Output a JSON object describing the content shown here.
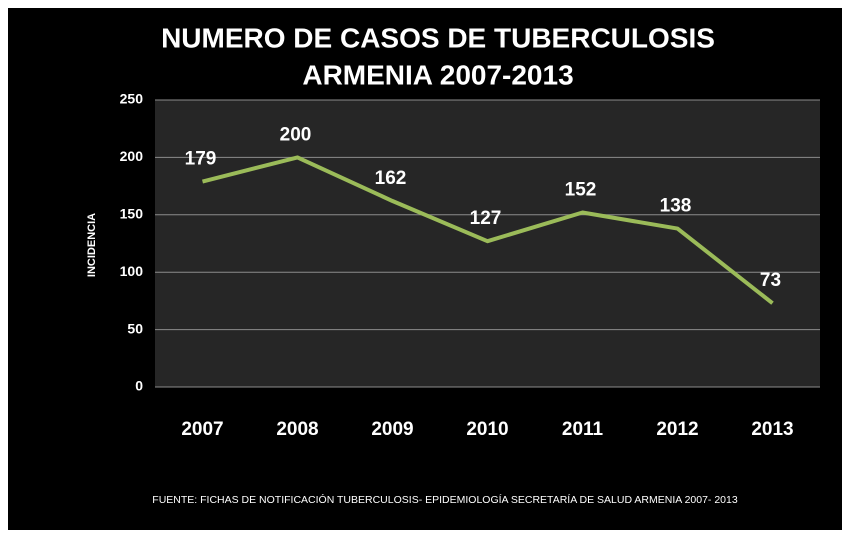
{
  "chart_data": {
    "type": "line",
    "title": [
      "NUMERO DE CASOS DE TUBERCULOSIS",
      "ARMENIA 2007-2013"
    ],
    "y_label": "INCIDENCIA",
    "source": "FUENTE: FICHAS DE NOTIFICACIÓN TUBERCULOSIS- EPIDEMIOLOGÍA SECRETARÍA DE SALUD ARMENIA 2007- 2013",
    "categories": [
      "2007",
      "2008",
      "2009",
      "2010",
      "2011",
      "2012",
      "2013"
    ],
    "series": [
      {
        "name": "INCIDENCIA",
        "color": "#9bbb59",
        "values": [
          179,
          200,
          162,
          127,
          152,
          138,
          73
        ]
      }
    ],
    "ylim": [
      0,
      250
    ],
    "yticks": [
      0,
      50,
      100,
      150,
      200,
      250
    ],
    "grid": true
  }
}
